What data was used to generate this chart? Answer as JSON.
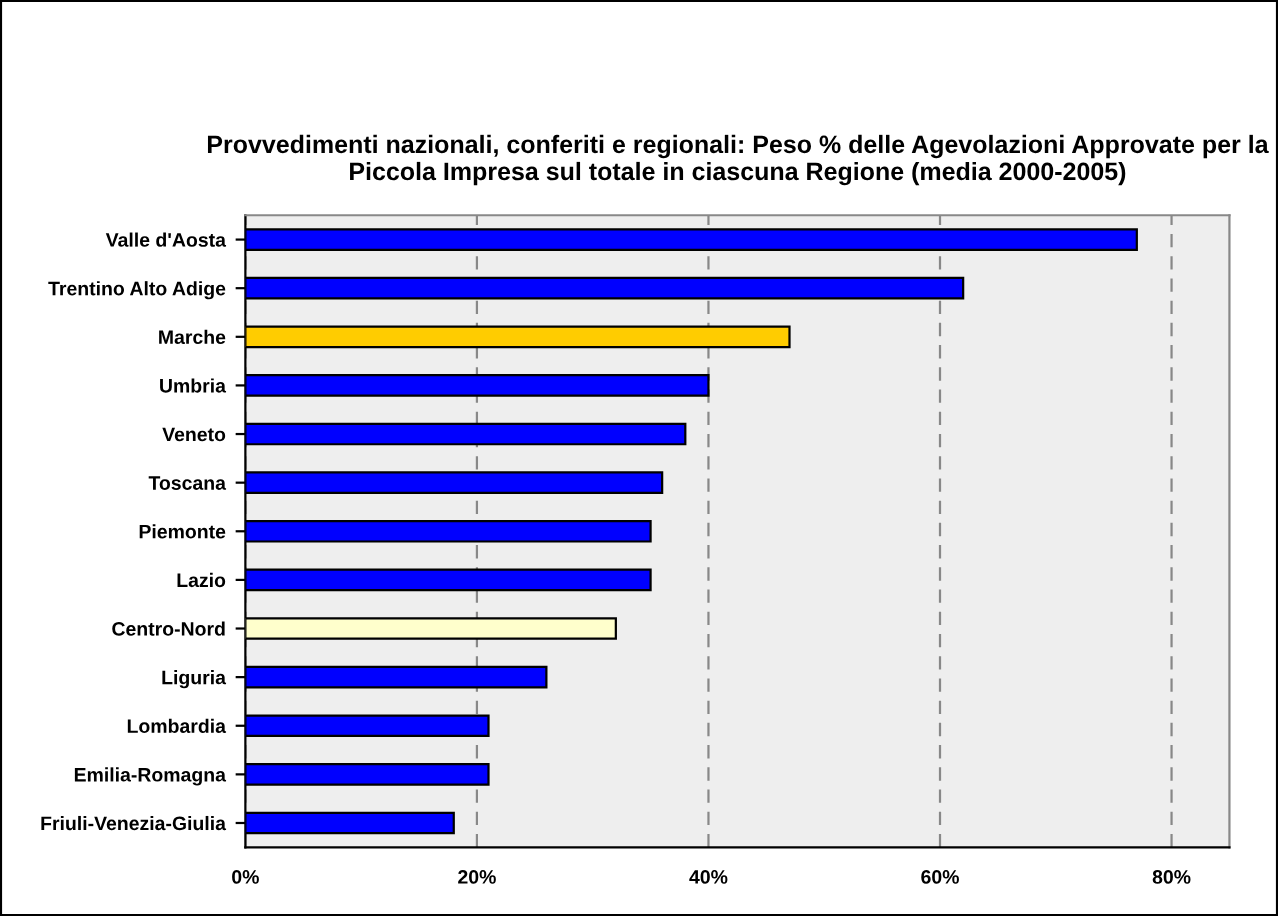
{
  "chart_data": {
    "type": "bar",
    "orientation": "horizontal",
    "title": "Provvedimenti nazionali, conferiti e regionali: Peso % delle Agevolazioni Approvate per la Piccola Impresa sul totale in ciascuna Regione (media 2000-2005)",
    "categories": [
      "Valle d'Aosta",
      "Trentino Alto Adige",
      "Marche",
      "Umbria",
      "Veneto",
      "Toscana",
      "Piemonte",
      "Lazio",
      "Centro-Nord",
      "Liguria",
      "Lombardia",
      "Emilia-Romagna",
      "Friuli-Venezia-Giulia"
    ],
    "values": [
      77,
      62,
      47,
      40,
      38,
      36,
      35,
      35,
      32,
      26,
      21,
      21,
      18
    ],
    "colors": [
      "#0000ff",
      "#0000ff",
      "#ffcc00",
      "#0000ff",
      "#0000ff",
      "#0000ff",
      "#0000ff",
      "#0000ff",
      "#ffffcc",
      "#0000ff",
      "#0000ff",
      "#0000ff",
      "#0000ff"
    ],
    "xlim": [
      0,
      85
    ],
    "xticks": [
      {
        "value": 0,
        "label": "0%"
      },
      {
        "value": 20,
        "label": "20%"
      },
      {
        "value": 40,
        "label": "40%"
      },
      {
        "value": 60,
        "label": "60%"
      },
      {
        "value": 80,
        "label": "80%"
      }
    ],
    "grid": "x",
    "legend": false
  }
}
